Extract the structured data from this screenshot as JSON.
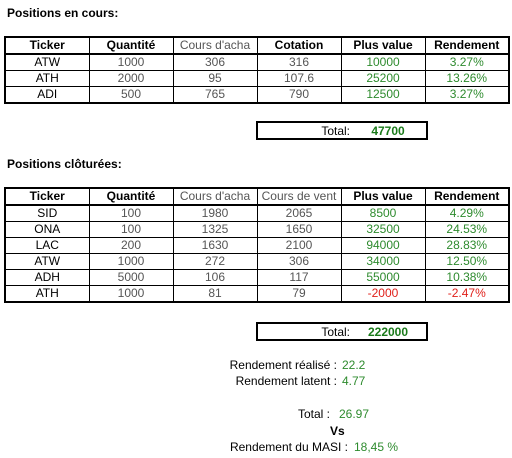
{
  "open_positions": {
    "heading": "Positions en cours:",
    "headers": [
      "Ticker",
      "Quantité",
      "Cours d'acha",
      "Cotation",
      "Plus value",
      "Rendement"
    ],
    "rows": [
      [
        "ATW",
        "1000",
        "306",
        "316",
        "10000",
        "3.27%"
      ],
      [
        "ATH",
        "2000",
        "95",
        "107.6",
        "25200",
        "13.26%"
      ],
      [
        "ADI",
        "500",
        "765",
        "790",
        "12500",
        "3.27%"
      ]
    ],
    "total_label": "Total:",
    "total_value": "47700"
  },
  "closed_positions": {
    "heading": "Positions clôturées:",
    "headers": [
      "Ticker",
      "Quantité",
      "Cours d'acha",
      "Cours de vent",
      "Plus value",
      "Rendement"
    ],
    "rows": [
      [
        "SID",
        "100",
        "1980",
        "2065",
        "8500",
        "4.29%"
      ],
      [
        "ONA",
        "100",
        "1325",
        "1650",
        "32500",
        "24.53%"
      ],
      [
        "LAC",
        "200",
        "1630",
        "2100",
        "94000",
        "28.83%"
      ],
      [
        "ATW",
        "1000",
        "272",
        "306",
        "34000",
        "12.50%"
      ],
      [
        "ADH",
        "5000",
        "106",
        "117",
        "55000",
        "10.38%"
      ],
      [
        "ATH",
        "1000",
        "81",
        "79",
        "-2000",
        "-2.47%"
      ]
    ],
    "total_label": "Total:",
    "total_value": "222000"
  },
  "summary": {
    "realized_label": "Rendement réalisé :",
    "realized_value": "22.2",
    "latent_label": "Rendement latent :",
    "latent_value": "4.77",
    "total_label": "Total :",
    "total_value": "26.97",
    "vs_label": "Vs",
    "masi_label": "Rendement du MASI :",
    "masi_value": "18,45 %"
  },
  "colors": {
    "positive": "#2e8b2e",
    "negative": "#e0201a",
    "total": "#1a7a1a"
  }
}
